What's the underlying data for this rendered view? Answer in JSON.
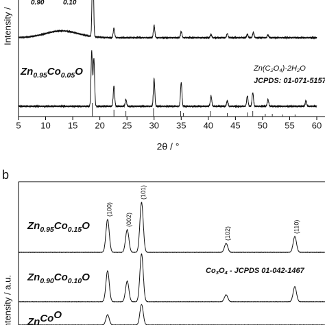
{
  "chart_data": [
    {
      "type": "xrd",
      "ylabel": "Intensity /",
      "xlabel": "2θ / °",
      "xlim": [
        5,
        60
      ],
      "xticks": [
        5,
        10,
        15,
        20,
        25,
        30,
        35,
        40,
        45,
        50,
        55,
        60
      ],
      "ylim": [
        0,
        170
      ],
      "cut_label": [
        "0.90",
        "0.10"
      ],
      "series": [
        {
          "baseline": 115,
          "peaks": [
            [
              13,
              10,
              3
            ],
            [
              18.7,
              120
            ],
            [
              22.6,
              14
            ],
            [
              30,
              18
            ],
            [
              35,
              9
            ],
            [
              40.5,
              5
            ],
            [
              43.5,
              6
            ],
            [
              47.2,
              5
            ],
            [
              48.3,
              8
            ],
            [
              51,
              4
            ]
          ]
        },
        {
          "label": [
            "Zn",
            "0.95",
            "Co",
            "0.05",
            "O"
          ],
          "baseline": 15,
          "peaks": [
            [
              18.5,
              80
            ],
            [
              18.9,
              70
            ],
            [
              22.6,
              30
            ],
            [
              24.8,
              10
            ],
            [
              30,
              40
            ],
            [
              35,
              35
            ],
            [
              40.5,
              15
            ],
            [
              43.5,
              8
            ],
            [
              47.2,
              15
            ],
            [
              48.2,
              20
            ],
            [
              51,
              10
            ],
            [
              58,
              8
            ]
          ]
        }
      ],
      "reference": {
        "name": [
          "Zn(C",
          "2",
          "O",
          "4",
          ")·2H",
          "2",
          "O"
        ],
        "source": "JCPDS: 01-071-5157",
        "peaks": [
          [
            18.6,
            20
          ],
          [
            22.6,
            10
          ],
          [
            24.8,
            8
          ],
          [
            29.9,
            12
          ],
          [
            34.9,
            8
          ],
          [
            35.4,
            5
          ],
          [
            40.4,
            8
          ],
          [
            43.5,
            5
          ],
          [
            47.2,
            6
          ],
          [
            48.2,
            8
          ],
          [
            50.5,
            4
          ],
          [
            51.8,
            4
          ],
          [
            53.7,
            3
          ],
          [
            56,
            3
          ]
        ]
      }
    },
    {
      "type": "xrd",
      "panel_label": "b",
      "ylabel": "Intensity / a.u.",
      "xlim": [
        20,
        60.6
      ],
      "ylim": [
        0,
        209
      ],
      "series": [
        {
          "label": [
            "Zn",
            "0.95",
            "Co",
            "0.15",
            "O"
          ],
          "baseline": 106,
          "peaks": [
            [
              31.8,
              48
            ],
            [
              34.4,
              33
            ],
            [
              36.3,
              73
            ],
            [
              47.5,
              13
            ],
            [
              56.6,
              23
            ]
          ]
        },
        {
          "label": [
            "Zn",
            "0.90",
            "Co",
            "0.10",
            "O"
          ],
          "baseline": 34,
          "peaks": [
            [
              31.8,
              45
            ],
            [
              34.4,
              30
            ],
            [
              36.3,
              70
            ],
            [
              47.5,
              10
            ],
            [
              56.6,
              22
            ]
          ]
        },
        {
          "label": [
            "Zn",
            "",
            "Co",
            "",
            "O"
          ],
          "baseline": 0,
          "peaks": [
            [
              31.8,
              15
            ],
            [
              36.3,
              30
            ]
          ]
        }
      ],
      "peak_labels": [
        {
          "text": "(100)",
          "x": 31.8
        },
        {
          "text": "(002)",
          "x": 34.4
        },
        {
          "text": "(101)",
          "x": 36.3
        },
        {
          "text": "(102)",
          "x": 47.5
        },
        {
          "text": "(110)",
          "x": 56.6
        }
      ],
      "reference_label": [
        "Co",
        "3",
        "O",
        "4",
        " - JCPDS 01-042-1467"
      ]
    }
  ]
}
